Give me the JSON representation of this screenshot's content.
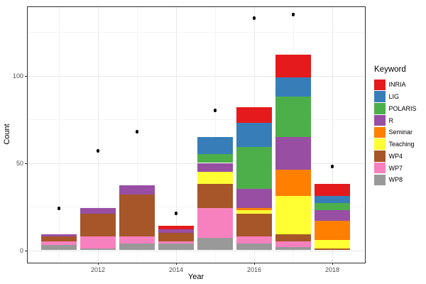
{
  "chart_data": {
    "type": "bar",
    "subtype": "stacked-bars-with-points",
    "xlabel": "Year",
    "ylabel": "Count",
    "legend_title": "Keyword",
    "legend_position": "right",
    "grid": true,
    "x": [
      2011,
      2012,
      2013,
      2014,
      2015,
      2016,
      2017,
      2018
    ],
    "series": [
      {
        "name": "INRIA",
        "color": "#E41A1C",
        "values": [
          0,
          0,
          0,
          2,
          0,
          9,
          13,
          7
        ]
      },
      {
        "name": "LIG",
        "color": "#377EB8",
        "values": [
          0,
          0,
          0,
          0,
          10,
          14,
          11,
          4
        ]
      },
      {
        "name": "POLARIS",
        "color": "#4DAF4A",
        "values": [
          0,
          0,
          0,
          0,
          5,
          24,
          23,
          4
        ]
      },
      {
        "name": "R",
        "color": "#984EA3",
        "values": [
          1,
          3,
          5,
          2,
          5,
          11,
          19,
          6
        ]
      },
      {
        "name": "Seminar",
        "color": "#FF7F00",
        "values": [
          0,
          0,
          0,
          0,
          0,
          1,
          15,
          11
        ]
      },
      {
        "name": "Teaching",
        "color": "#FFFF33",
        "values": [
          0,
          0,
          0,
          0,
          7,
          2,
          22,
          5
        ]
      },
      {
        "name": "WP4",
        "color": "#A65628",
        "values": [
          3,
          13,
          24,
          5,
          14,
          13,
          4,
          1
        ]
      },
      {
        "name": "WP7",
        "color": "#F781BF",
        "values": [
          2,
          7,
          4,
          1,
          17,
          4,
          3,
          0
        ]
      },
      {
        "name": "WP8",
        "color": "#999999",
        "values": [
          3,
          1,
          4,
          4,
          7,
          4,
          2,
          0
        ]
      }
    ],
    "bar_totals": [
      9,
      24,
      37,
      14,
      65,
      82,
      112,
      38
    ],
    "points_series": {
      "name": "points",
      "color": "#000000",
      "values": [
        24,
        57,
        68,
        21,
        80,
        133,
        135,
        48
      ]
    },
    "axes": {
      "y_ticks": [
        0,
        50,
        100
      ],
      "y_tick_labels": [
        "0",
        "50",
        "100"
      ],
      "y_minor": [
        25,
        75,
        125
      ],
      "x_ticks": [
        2012,
        2014,
        2016,
        2018
      ],
      "x_tick_labels": [
        "2012",
        "2014",
        "2016",
        "2018"
      ],
      "x_minor": [
        2011,
        2013,
        2015,
        2017
      ],
      "ylim": [
        -6.7,
        139.2
      ],
      "xlim": [
        2010.2,
        2018.8
      ]
    },
    "theme": {
      "panel_bg": "#FFFFFF",
      "grid_major": "#E8E8E8",
      "grid_minor": "#F3F3F3",
      "panel_border": "#2F2F2F",
      "tick_label_color": "#4D4D4D",
      "axis_title_color": "#000000"
    }
  }
}
